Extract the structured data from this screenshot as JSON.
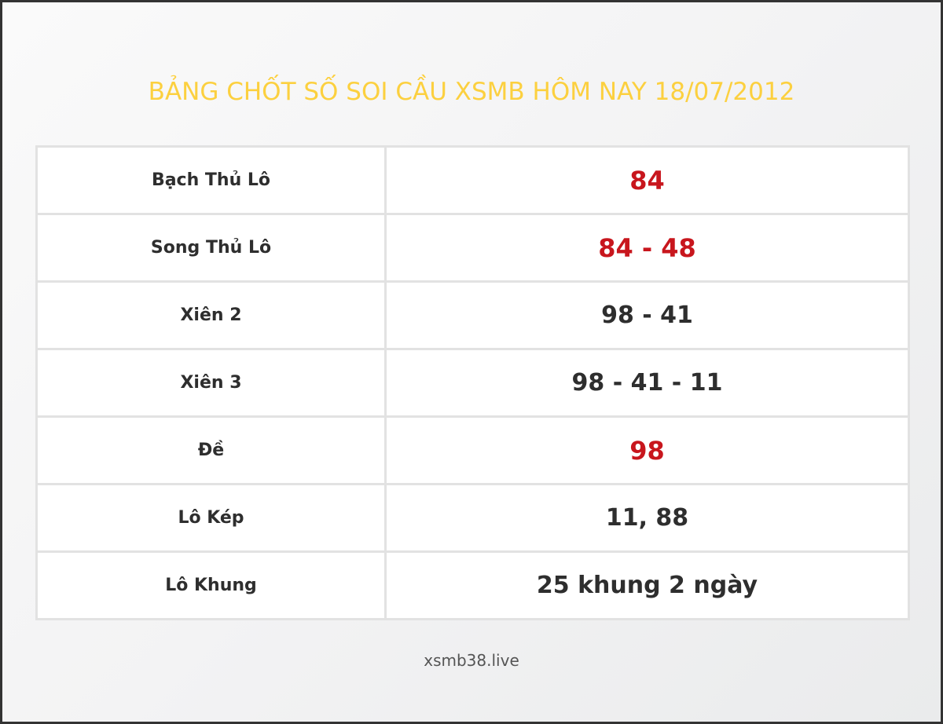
{
  "title": "BẢNG CHỐT SỐ SOI CẦU XSMB HÔM NAY 18/07/2012",
  "colors": {
    "title": "#fcd03f",
    "highlight": "#c8161d",
    "text": "#2e2e2e"
  },
  "rows": [
    {
      "label": "Bạch Thủ Lô",
      "value": "84",
      "highlight": true
    },
    {
      "label": "Song Thủ Lô",
      "value": "84 - 48",
      "highlight": true
    },
    {
      "label": "Xiên 2",
      "value": "98 - 41",
      "highlight": false
    },
    {
      "label": "Xiên 3",
      "value": "98 - 41 - 11",
      "highlight": false
    },
    {
      "label": "Đề",
      "value": "98",
      "highlight": true
    },
    {
      "label": "Lô Kép",
      "value": "11, 88",
      "highlight": false
    },
    {
      "label": "Lô Khung",
      "value": "25 khung 2 ngày",
      "highlight": false
    }
  ],
  "footer": "xsmb38.live"
}
